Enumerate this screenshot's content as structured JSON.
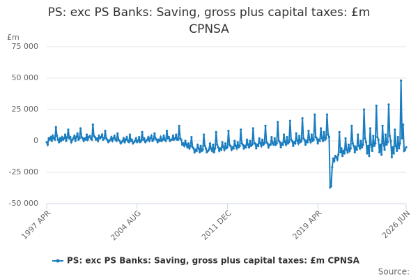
{
  "chart_data": {
    "type": "line",
    "title": "PS: exc PS Banks: Saving, gross plus capital taxes: £m CPNSA",
    "ylabel": "£m",
    "source": "Source:",
    "categories": [
      "1997 APR",
      null,
      null,
      null,
      null,
      null,
      null,
      null,
      null,
      null,
      null,
      null,
      null,
      null,
      null,
      null,
      null,
      null,
      null,
      null,
      null,
      null,
      null,
      null,
      null,
      null,
      null,
      null,
      null,
      null,
      null,
      null,
      null,
      null,
      null,
      null,
      null,
      null,
      null,
      null,
      null,
      null,
      null,
      null,
      null,
      null,
      null,
      null,
      null,
      null,
      null,
      null,
      null,
      null,
      null,
      null,
      null,
      null,
      null,
      null,
      null,
      null,
      null,
      null,
      null,
      null,
      null,
      null,
      null,
      null,
      null,
      null,
      null,
      null,
      null,
      null,
      null,
      null,
      null,
      null,
      null,
      null,
      null,
      null,
      null,
      null,
      null,
      null,
      "2004 AUG",
      null,
      null,
      null,
      null,
      null,
      null,
      null,
      null,
      null,
      null,
      null,
      null,
      null,
      null,
      null,
      null,
      null,
      null,
      null,
      null,
      null,
      null,
      null,
      null,
      null,
      null,
      null,
      null,
      null,
      null,
      null,
      null,
      null,
      null,
      null,
      null,
      null,
      null,
      null,
      null,
      null,
      null,
      null,
      null,
      null,
      null,
      null,
      null,
      null,
      null,
      null,
      null,
      null,
      null,
      null,
      null,
      null,
      null,
      null,
      null,
      null,
      null,
      null,
      null,
      null,
      null,
      null,
      null,
      null,
      null,
      null,
      null,
      null,
      null,
      null,
      null,
      null,
      null,
      null,
      null,
      null,
      null,
      null,
      null,
      null,
      null,
      null,
      "2011 DEC",
      null,
      null,
      null,
      null,
      null,
      null,
      null,
      null,
      null,
      null,
      null,
      null,
      null,
      null,
      null,
      null,
      null,
      null,
      null,
      null,
      null,
      null,
      null,
      null,
      null,
      null,
      null,
      null,
      null,
      null,
      null,
      null,
      null,
      null,
      null,
      null,
      null,
      null,
      null,
      null,
      null,
      null,
      null,
      null,
      null,
      null,
      null,
      null,
      null,
      null,
      null,
      null,
      null,
      null,
      null,
      null,
      null,
      null,
      null,
      null,
      null,
      null,
      null,
      null,
      null,
      null,
      null,
      null,
      null,
      null,
      null,
      null,
      null,
      null,
      null,
      null,
      null,
      null,
      null,
      null,
      null,
      null,
      null,
      null,
      null,
      null,
      null,
      "2019 APR",
      null,
      null,
      null,
      null,
      null,
      null,
      null,
      null,
      null,
      null,
      null,
      null,
      null,
      null,
      null,
      null,
      null,
      null,
      null,
      null,
      null,
      null,
      null,
      null,
      null,
      null,
      null,
      null,
      null,
      null,
      null,
      null,
      null,
      null,
      null,
      null,
      null,
      null,
      null,
      null,
      null,
      null,
      null,
      null,
      null,
      null,
      null,
      null,
      null,
      null,
      null,
      null,
      null,
      null,
      null,
      null,
      null,
      null,
      null,
      null,
      null,
      null,
      null,
      null,
      null,
      null,
      null,
      null,
      null,
      null,
      null,
      null,
      null,
      null,
      null,
      null,
      null,
      null,
      null,
      null,
      null,
      null,
      null,
      null,
      null,
      "2026 JUN"
    ],
    "series": [
      {
        "name": "PS: exc PS Banks: Saving, gross plus capital taxes: £m CPNSA",
        "color": "#1a7dbf",
        "values": [
          -1000,
          -3000,
          2000,
          1000,
          3000,
          0,
          4000,
          2000,
          1000,
          11000,
          4000,
          1000,
          -1000,
          2000,
          0,
          3000,
          1000,
          2000,
          5000,
          0,
          3000,
          9000,
          2000,
          3000,
          -1000,
          1000,
          2000,
          4000,
          0,
          3000,
          6000,
          1000,
          2000,
          10000,
          3000,
          2000,
          0,
          2000,
          1000,
          5000,
          1000,
          3000,
          4000,
          2000,
          1000,
          13000,
          4000,
          3000,
          1000,
          2000,
          0,
          4000,
          2000,
          3000,
          5000,
          1000,
          2000,
          8000,
          2000,
          1000,
          -1000,
          0,
          1000,
          3000,
          0,
          2000,
          4000,
          1000,
          0,
          6000,
          1000,
          0,
          -2000,
          -1000,
          0,
          2000,
          -1000,
          1000,
          3000,
          0,
          -1000,
          5000,
          0,
          1000,
          -2000,
          -1000,
          0,
          2000,
          -1000,
          0,
          3000,
          -1000,
          0,
          7000,
          1000,
          2000,
          -1000,
          0,
          1000,
          3000,
          0,
          2000,
          4000,
          0,
          1000,
          6000,
          2000,
          1000,
          -1000,
          1000,
          0,
          3000,
          0,
          1000,
          4000,
          1000,
          0,
          8000,
          2000,
          3000,
          0,
          1000,
          1000,
          4000,
          1000,
          2000,
          5000,
          1000,
          1000,
          12000,
          2000,
          1000,
          -3000,
          -2000,
          -4000,
          0,
          -3000,
          -5000,
          -2000,
          -6000,
          -4000,
          3000,
          -5000,
          -6000,
          -9000,
          -7000,
          -8000,
          -3000,
          -6000,
          -9000,
          -4000,
          -8000,
          -7000,
          5000,
          -4000,
          -6000,
          -9000,
          -8000,
          -7000,
          -2000,
          -6000,
          -8000,
          -3000,
          -9000,
          -6000,
          7000,
          -3000,
          -5000,
          -8000,
          -6000,
          -7000,
          -1000,
          -5000,
          -7000,
          -2000,
          -6000,
          -5000,
          8000,
          -3000,
          -4000,
          -7000,
          -5000,
          -6000,
          0,
          -4000,
          -6000,
          -1000,
          -5000,
          -4000,
          9000,
          -2000,
          -3000,
          -6000,
          -4000,
          -5000,
          1000,
          -3000,
          -5000,
          0,
          -4000,
          -3000,
          10000,
          -2000,
          -2000,
          -6000,
          -3000,
          -4000,
          2000,
          -2000,
          -4000,
          1000,
          -3000,
          -2000,
          12000,
          -1000,
          -2000,
          -5000,
          -3000,
          -3000,
          3000,
          -2000,
          -3000,
          2000,
          -3000,
          -2000,
          15000,
          0,
          -1000,
          -5000,
          -2000,
          -3000,
          5000,
          -1000,
          -3000,
          3000,
          -2000,
          -1000,
          16000,
          1000,
          0,
          -4000,
          -1000,
          -2000,
          6000,
          0,
          -2000,
          4000,
          -1000,
          0,
          18000,
          2000,
          1000,
          -3000,
          0,
          -1000,
          8000,
          1000,
          -1000,
          5000,
          0,
          1000,
          21000,
          3000,
          2000,
          -2000,
          1000,
          0,
          10000,
          2000,
          0,
          7000,
          1000,
          2000,
          21000,
          5000,
          3000,
          -37000,
          -36000,
          -21000,
          -14000,
          -16000,
          -12000,
          -13000,
          -15000,
          -11000,
          7000,
          -9000,
          -6000,
          -12000,
          -8000,
          -10000,
          2000,
          -7000,
          -9000,
          -3000,
          -8000,
          -6000,
          12000,
          -2000,
          -4000,
          -9000,
          -5000,
          -7000,
          5000,
          -4000,
          -6000,
          0,
          -5000,
          -3000,
          25000,
          2000,
          -1000,
          -10000,
          -4000,
          -12000,
          10000,
          -3000,
          -8000,
          4000,
          -4000,
          -2000,
          28000,
          3000,
          1000,
          -9000,
          -3000,
          -11000,
          12000,
          -2000,
          -7000,
          5000,
          -3000,
          -1000,
          29000,
          4000,
          0,
          -13000,
          -5000,
          -10000,
          9000,
          -4000,
          -8000,
          3000,
          -6000,
          -2000,
          48000,
          2000,
          13000,
          -8000,
          -7000,
          -5000
        ]
      }
    ],
    "ylim": [
      -50000,
      75000
    ],
    "yticks": [
      {
        "value": -50000,
        "label": "-50 000"
      },
      {
        "value": -25000,
        "label": "-25 000"
      },
      0,
      {
        "value": 25000,
        "label": "25 000"
      },
      {
        "value": 50000,
        "label": "50 000"
      },
      {
        "value": 75000,
        "label": "75 000"
      }
    ],
    "grid": true
  }
}
